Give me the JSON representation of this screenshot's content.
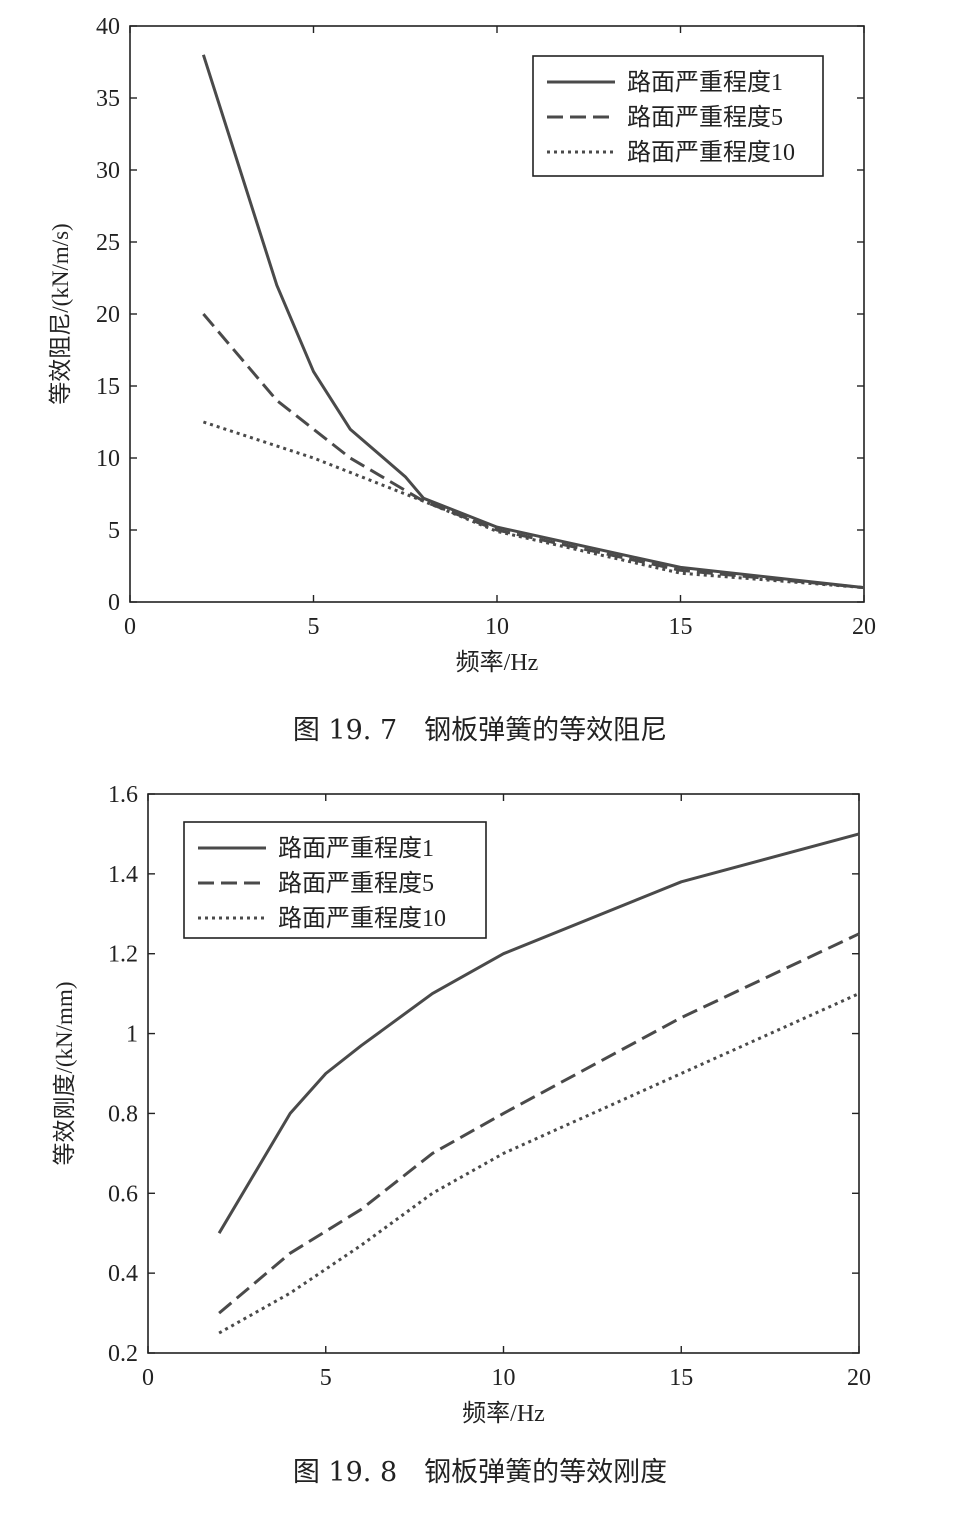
{
  "chart_data": [
    {
      "type": "line",
      "caption": "图 19. 7　钢板弹簧的等效阻尼",
      "xlabel": "频率/Hz",
      "ylabel": "等效阻尼/(kN/m/s)",
      "xlim": [
        0,
        20
      ],
      "ylim": [
        0,
        40
      ],
      "xticks": [
        "0",
        "5",
        "10",
        "15",
        "20"
      ],
      "yticks": [
        "0",
        "5",
        "10",
        "15",
        "20",
        "25",
        "30",
        "35",
        "40"
      ],
      "grid": false,
      "legend_position": "top-right",
      "series": [
        {
          "name": "路面严重程度1",
          "style": "solid",
          "x": [
            2,
            4,
            5,
            6,
            7.5,
            8,
            10,
            15,
            20
          ],
          "y": [
            38,
            22,
            16,
            12,
            8.7,
            7.2,
            5.2,
            2.4,
            1.0
          ]
        },
        {
          "name": "路面严重程度5",
          "style": "dashed",
          "x": [
            2,
            4,
            6,
            8,
            10,
            15,
            20
          ],
          "y": [
            20,
            14,
            10,
            7.0,
            5.0,
            2.2,
            1.0
          ]
        },
        {
          "name": "路面严重程度10",
          "style": "dotted",
          "x": [
            2,
            5,
            8,
            10,
            15,
            20
          ],
          "y": [
            12.5,
            10.0,
            7.0,
            4.9,
            2.0,
            1.0
          ]
        }
      ]
    },
    {
      "type": "line",
      "caption": "图 19. 8　钢板弹簧的等效刚度",
      "xlabel": "频率/Hz",
      "ylabel": "等效刚度/(kN/mm)",
      "xlim": [
        0,
        20
      ],
      "ylim": [
        0.2,
        1.6
      ],
      "xticks": [
        "0",
        "5",
        "10",
        "15",
        "20"
      ],
      "yticks": [
        "0.2",
        "0.4",
        "0.6",
        "0.8",
        "1",
        "1.2",
        "1.4",
        "1.6"
      ],
      "grid": false,
      "legend_position": "top-left",
      "series": [
        {
          "name": "路面严重程度1",
          "style": "solid",
          "x": [
            2,
            4,
            5,
            6,
            8,
            10,
            15,
            20
          ],
          "y": [
            0.5,
            0.8,
            0.9,
            0.97,
            1.1,
            1.2,
            1.38,
            1.5
          ]
        },
        {
          "name": "路面严重程度5",
          "style": "dashed",
          "x": [
            2,
            4,
            6,
            8,
            10,
            15,
            20
          ],
          "y": [
            0.3,
            0.45,
            0.56,
            0.7,
            0.8,
            1.04,
            1.25
          ]
        },
        {
          "name": "路面严重程度10",
          "style": "dotted",
          "x": [
            2,
            4,
            6,
            8,
            10,
            15,
            20
          ],
          "y": [
            0.25,
            0.35,
            0.47,
            0.6,
            0.7,
            0.9,
            1.1
          ]
        }
      ]
    }
  ],
  "colors": {
    "line": "#4a4a4a",
    "axis": "#222222"
  }
}
